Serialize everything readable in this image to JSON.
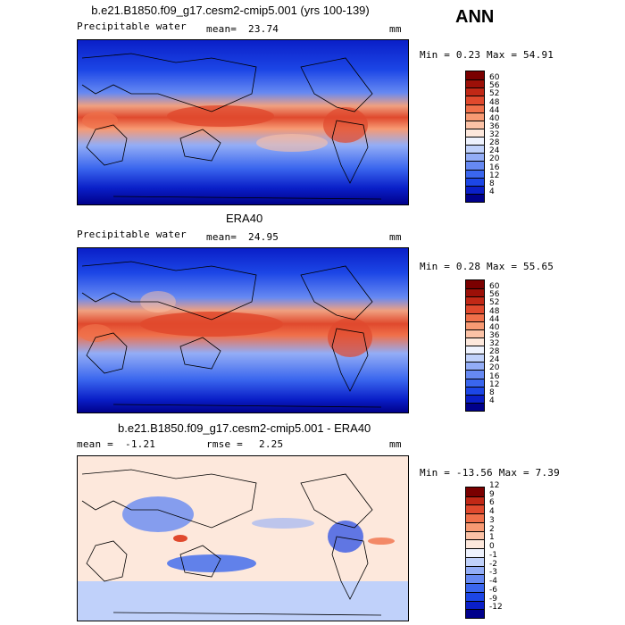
{
  "season": "ANN",
  "panels": [
    {
      "title": "b.e21.B1850.f09_g17.cesm2-cmip5.001 (yrs 100-139)",
      "left_label": "Precipitable water",
      "stat_label": "mean=",
      "stat_value": "23.74",
      "units": "mm",
      "minmax_text": "Min =   0.23 Max =  54.91",
      "colorbar": {
        "colors": [
          "#00008b",
          "#0a1fc8",
          "#1c46e6",
          "#3a66ee",
          "#6689f2",
          "#93adf6",
          "#c0d1fa",
          "#eef2fd",
          "#fde8dc",
          "#fbc2a6",
          "#f79a73",
          "#f0704a",
          "#e0492d",
          "#c12816",
          "#9c1008",
          "#7a0000"
        ],
        "labels": [
          "4",
          "8",
          "12",
          "16",
          "20",
          "24",
          "28",
          "32",
          "36",
          "40",
          "44",
          "48",
          "52",
          "56",
          "60"
        ]
      }
    },
    {
      "title": "ERA40",
      "left_label": "Precipitable water",
      "stat_label": "mean=",
      "stat_value": "24.95",
      "units": "mm",
      "minmax_text": "Min =   0.28 Max =  55.65",
      "colorbar": {
        "colors": [
          "#00008b",
          "#0a1fc8",
          "#1c46e6",
          "#3a66ee",
          "#6689f2",
          "#93adf6",
          "#c0d1fa",
          "#eef2fd",
          "#fde8dc",
          "#fbc2a6",
          "#f79a73",
          "#f0704a",
          "#e0492d",
          "#c12816",
          "#9c1008",
          "#7a0000"
        ],
        "labels": [
          "4",
          "8",
          "12",
          "16",
          "20",
          "24",
          "28",
          "32",
          "36",
          "40",
          "44",
          "48",
          "52",
          "56",
          "60"
        ]
      }
    },
    {
      "title": "b.e21.B1850.f09_g17.cesm2-cmip5.001 - ERA40",
      "left_label": "mean =",
      "left_value": "-1.21",
      "stat_label": "rmse =",
      "stat_value": "2.25",
      "units": "mm",
      "minmax_text": "Min = -13.56 Max =   7.39",
      "colorbar": {
        "colors": [
          "#00008b",
          "#0a1fc8",
          "#1c46e6",
          "#3a66ee",
          "#6689f2",
          "#93adf6",
          "#c0d1fa",
          "#eef2fd",
          "#fde8dc",
          "#fbc2a6",
          "#f79a73",
          "#f0704a",
          "#e0492d",
          "#c12816",
          "#7a0000"
        ],
        "labels": [
          "-12",
          "-9",
          "-6",
          "-4",
          "-3",
          "-2",
          "-1",
          "0",
          "1",
          "2",
          "3",
          "4",
          "6",
          "9",
          "12"
        ]
      }
    }
  ]
}
